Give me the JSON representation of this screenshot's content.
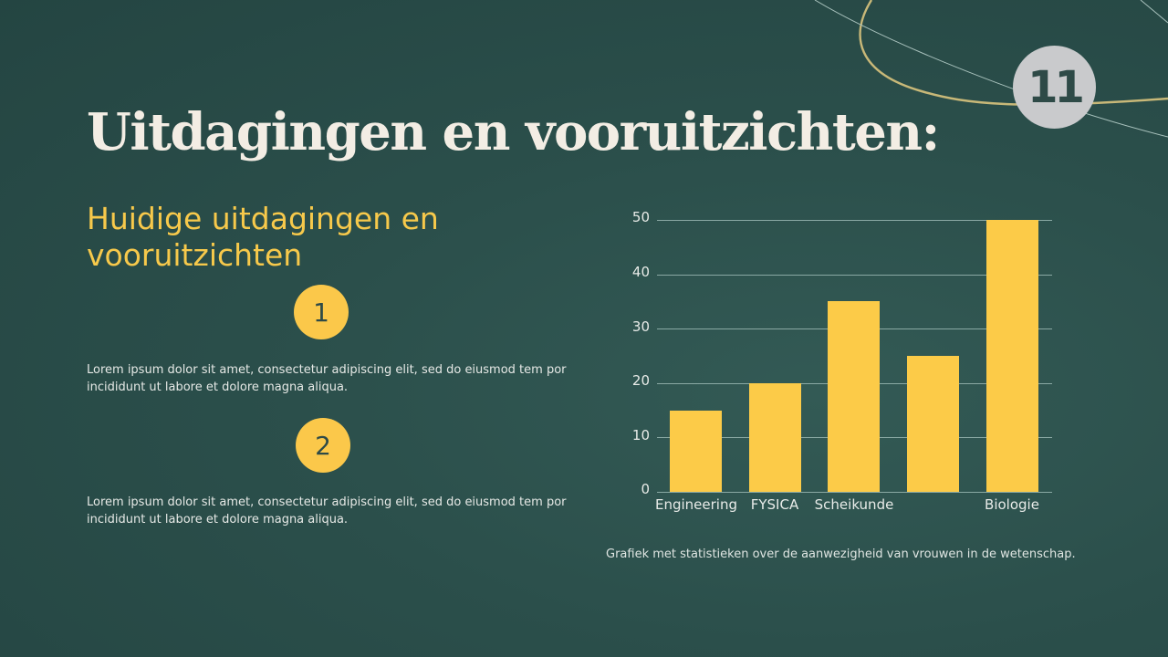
{
  "slide": {
    "number": "11",
    "title": "Uitdagingen en vooruitzichten:",
    "subtitle": "Huidige uitdagingen en vooruitzichten",
    "steps": [
      {
        "number": "1",
        "text": "Lorem ipsum dolor sit amet, consectetur adipiscing elit, sed do eiusmod tem por incididunt ut labore et dolore magna aliqua."
      },
      {
        "number": "2",
        "text": "Lorem ipsum dolor sit amet, consectetur adipiscing elit, sed do eiusmod tem por incididunt ut labore et dolore magna aliqua."
      }
    ],
    "caption": "Grafiek met statistieken over de aanwezigheid van vrouwen in de wetenschap."
  },
  "colors": {
    "background": "#2b4f4b",
    "accent": "#fccb48",
    "title": "#f3ede4",
    "badge": "#c9cacc"
  },
  "chart_data": {
    "type": "bar",
    "title": "",
    "categories": [
      "Engineering",
      "FYSICA",
      "Scheikunde",
      "",
      "Biologie"
    ],
    "values": [
      15,
      20,
      35,
      25,
      50
    ],
    "xlabel": "",
    "ylabel": "",
    "ylim": [
      0,
      50
    ],
    "yticks": [
      "0",
      "10",
      "20",
      "30",
      "40",
      "50"
    ],
    "grid": true,
    "legend": null,
    "bar_color": "#fccb48",
    "caption": "Grafiek met statistieken over de aanwezigheid van vrouwen in de wetenschap."
  }
}
